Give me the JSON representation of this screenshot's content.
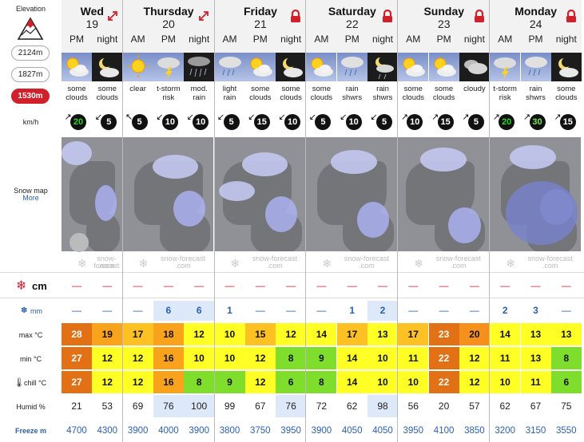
{
  "labels": {
    "elevation": "Elevation",
    "elev_options": [
      "2124m",
      "1827m",
      "1530m"
    ],
    "wind_unit": "km/h",
    "snow_map": "Snow map",
    "snow_map_more": "More",
    "snow_unit": "cm",
    "rain_unit": "mm",
    "max": "max °C",
    "min": "min °C",
    "chill": "chill °C",
    "humid": "Humid %",
    "freeze": "Freeze m",
    "watermark": [
      "snow-forecast",
      ".com"
    ]
  },
  "days": [
    {
      "name": "Wed",
      "num": "19",
      "icon": "expand-arrow-icon"
    },
    {
      "name": "Thursday",
      "num": "20",
      "icon": "expand-arrow-icon"
    },
    {
      "name": "Friday",
      "num": "21",
      "icon": "lock-icon"
    },
    {
      "name": "Saturday",
      "num": "22",
      "icon": "lock-icon"
    },
    {
      "name": "Sunday",
      "num": "23",
      "icon": "lock-icon"
    },
    {
      "name": "Monday",
      "num": "24",
      "icon": "lock-icon"
    }
  ],
  "periods": [
    {
      "label": "PM",
      "kind": "day",
      "icon": "sun-cloud",
      "summary": [
        "some",
        "clouds"
      ],
      "wind": "20",
      "wind_dir": "↗",
      "wc": "low",
      "snow": "—",
      "rain": "—",
      "rain_bg": false,
      "max": "28",
      "min": "27",
      "chill": "27",
      "maxc": "#e27014",
      "minc": "#e27014",
      "chillc": "#e27014",
      "humid": "21",
      "humid_bg": false,
      "freeze": "4700"
    },
    {
      "label": "night",
      "kind": "night",
      "icon": "moon-cloud",
      "summary": [
        "some",
        "clouds"
      ],
      "wind": "5",
      "wind_dir": "↙",
      "wc": "",
      "snow": "—",
      "rain": "—",
      "rain_bg": false,
      "max": "19",
      "min": "12",
      "chill": "12",
      "maxc": "#f9a21b",
      "minc": "#ffff26",
      "chillc": "#ffff26",
      "humid": "53",
      "humid_bg": false,
      "freeze": "4300"
    },
    {
      "label": "AM",
      "kind": "day",
      "icon": "sun",
      "summary": [
        "clear"
      ],
      "wind": "5",
      "wind_dir": "↖",
      "wc": "",
      "snow": "—",
      "rain": "—",
      "rain_bg": false,
      "max": "17",
      "min": "12",
      "chill": "12",
      "maxc": "#fec124",
      "minc": "#ffff26",
      "chillc": "#ffff26",
      "humid": "69",
      "humid_bg": false,
      "freeze": "3900"
    },
    {
      "label": "PM",
      "kind": "day",
      "icon": "thunder-cloud",
      "summary": [
        "t-storm",
        "risk"
      ],
      "wind": "10",
      "wind_dir": "↙",
      "wc": "",
      "snow": "—",
      "rain": "6",
      "rain_bg": true,
      "max": "18",
      "min": "16",
      "chill": "16",
      "maxc": "#f9a21b",
      "minc": "#f9a21b",
      "chillc": "#f9a21b",
      "humid": "76",
      "humid_bg": true,
      "freeze": "4000"
    },
    {
      "label": "night",
      "kind": "night",
      "icon": "rain-night",
      "summary": [
        "mod.",
        "rain"
      ],
      "wind": "10",
      "wind_dir": "↙",
      "wc": "",
      "snow": "—",
      "rain": "6",
      "rain_bg": true,
      "max": "12",
      "min": "10",
      "chill": "8",
      "maxc": "#ffff26",
      "minc": "#ffff26",
      "chillc": "#7fdd2c",
      "humid": "100",
      "humid_bg": true,
      "freeze": "3900"
    },
    {
      "label": "AM",
      "kind": "day",
      "icon": "rain-cloud",
      "summary": [
        "light",
        "rain"
      ],
      "wind": "5",
      "wind_dir": "↙",
      "wc": "",
      "snow": "—",
      "rain": "1",
      "rain_bg": false,
      "max": "10",
      "min": "10",
      "chill": "9",
      "maxc": "#ffff26",
      "minc": "#ffff26",
      "chillc": "#7fdd2c",
      "humid": "99",
      "humid_bg": false,
      "freeze": "3800"
    },
    {
      "label": "PM",
      "kind": "day",
      "icon": "sun-cloud",
      "summary": [
        "some",
        "clouds"
      ],
      "wind": "15",
      "wind_dir": "↙",
      "wc": "",
      "snow": "—",
      "rain": "—",
      "rain_bg": false,
      "max": "15",
      "min": "12",
      "chill": "12",
      "maxc": "#fec124",
      "minc": "#ffff26",
      "chillc": "#ffff26",
      "humid": "67",
      "humid_bg": false,
      "freeze": "3750"
    },
    {
      "label": "night",
      "kind": "night",
      "icon": "moon-cloud",
      "summary": [
        "some",
        "clouds"
      ],
      "wind": "10",
      "wind_dir": "↙",
      "wc": "",
      "snow": "—",
      "rain": "—",
      "rain_bg": false,
      "max": "12",
      "min": "8",
      "chill": "6",
      "maxc": "#ffff26",
      "minc": "#7fdd2c",
      "chillc": "#7fdd2c",
      "humid": "76",
      "humid_bg": true,
      "freeze": "3950"
    },
    {
      "label": "AM",
      "kind": "day",
      "icon": "sun-cloud",
      "summary": [
        "some",
        "clouds"
      ],
      "wind": "5",
      "wind_dir": "↙",
      "wc": "",
      "snow": "—",
      "rain": "—",
      "rain_bg": false,
      "max": "14",
      "min": "9",
      "chill": "8",
      "maxc": "#ffff26",
      "minc": "#7fdd2c",
      "chillc": "#7fdd2c",
      "humid": "72",
      "humid_bg": false,
      "freeze": "3900"
    },
    {
      "label": "PM",
      "kind": "day",
      "icon": "rain-cloud",
      "summary": [
        "rain",
        "shwrs"
      ],
      "wind": "10",
      "wind_dir": "↙",
      "wc": "",
      "snow": "—",
      "rain": "1",
      "rain_bg": false,
      "max": "17",
      "min": "14",
      "chill": "14",
      "maxc": "#fec124",
      "minc": "#ffff26",
      "chillc": "#ffff26",
      "humid": "62",
      "humid_bg": false,
      "freeze": "4050"
    },
    {
      "label": "night",
      "kind": "night",
      "icon": "moon-rain",
      "summary": [
        "rain",
        "shwrs"
      ],
      "wind": "5",
      "wind_dir": "↙",
      "wc": "",
      "snow": "—",
      "rain": "2",
      "rain_bg": true,
      "max": "13",
      "min": "10",
      "chill": "10",
      "maxc": "#ffff26",
      "minc": "#ffff26",
      "chillc": "#ffff26",
      "humid": "98",
      "humid_bg": true,
      "freeze": "4050"
    },
    {
      "label": "AM",
      "kind": "day",
      "icon": "sun-cloud",
      "summary": [
        "some",
        "clouds"
      ],
      "wind": "10",
      "wind_dir": "↗",
      "wc": "",
      "snow": "—",
      "rain": "—",
      "rain_bg": false,
      "max": "17",
      "min": "11",
      "chill": "10",
      "maxc": "#fec124",
      "minc": "#ffff26",
      "chillc": "#ffff26",
      "humid": "56",
      "humid_bg": false,
      "freeze": "3950"
    },
    {
      "label": "PM",
      "kind": "day",
      "icon": "sun-cloud",
      "summary": [
        "some",
        "clouds"
      ],
      "wind": "15",
      "wind_dir": "↗",
      "wc": "",
      "snow": "—",
      "rain": "—",
      "rain_bg": false,
      "max": "23",
      "min": "22",
      "chill": "22",
      "maxc": "#e27014",
      "minc": "#e27014",
      "chillc": "#e27014",
      "humid": "20",
      "humid_bg": false,
      "freeze": "4100"
    },
    {
      "label": "night",
      "kind": "night",
      "icon": "cloudy-night",
      "summary": [
        "cloudy"
      ],
      "wind": "5",
      "wind_dir": "↗",
      "wc": "",
      "snow": "—",
      "rain": "—",
      "rain_bg": false,
      "max": "20",
      "min": "12",
      "chill": "12",
      "maxc": "#f5901c",
      "minc": "#ffff26",
      "chillc": "#ffff26",
      "humid": "57",
      "humid_bg": false,
      "freeze": "3850"
    },
    {
      "label": "AM",
      "kind": "day",
      "icon": "thunder-cloud",
      "summary": [
        "t-storm",
        "risk"
      ],
      "wind": "20",
      "wind_dir": "↗",
      "wc": "low",
      "snow": "—",
      "rain": "2",
      "rain_bg": false,
      "max": "14",
      "min": "11",
      "chill": "10",
      "maxc": "#ffff26",
      "minc": "#ffff26",
      "chillc": "#ffff26",
      "humid": "62",
      "humid_bg": false,
      "freeze": "3200"
    },
    {
      "label": "PM",
      "kind": "day",
      "icon": "rain-cloud",
      "summary": [
        "rain",
        "shwrs"
      ],
      "wind": "30",
      "wind_dir": "↗",
      "wc": "mid",
      "snow": "—",
      "rain": "3",
      "rain_bg": false,
      "max": "13",
      "min": "13",
      "chill": "11",
      "maxc": "#ffff26",
      "minc": "#ffff26",
      "chillc": "#ffff26",
      "humid": "67",
      "humid_bg": false,
      "freeze": "3150"
    },
    {
      "label": "night",
      "kind": "night",
      "icon": "moon-cloud",
      "summary": [
        "some",
        "clouds"
      ],
      "wind": "15",
      "wind_dir": "↗",
      "wc": "",
      "snow": "—",
      "rain": "—",
      "rain_bg": false,
      "max": "13",
      "min": "8",
      "chill": "6",
      "maxc": "#ffff26",
      "minc": "#7fdd2c",
      "chillc": "#7fdd2c",
      "humid": "75",
      "humid_bg": false,
      "freeze": "3550"
    }
  ]
}
